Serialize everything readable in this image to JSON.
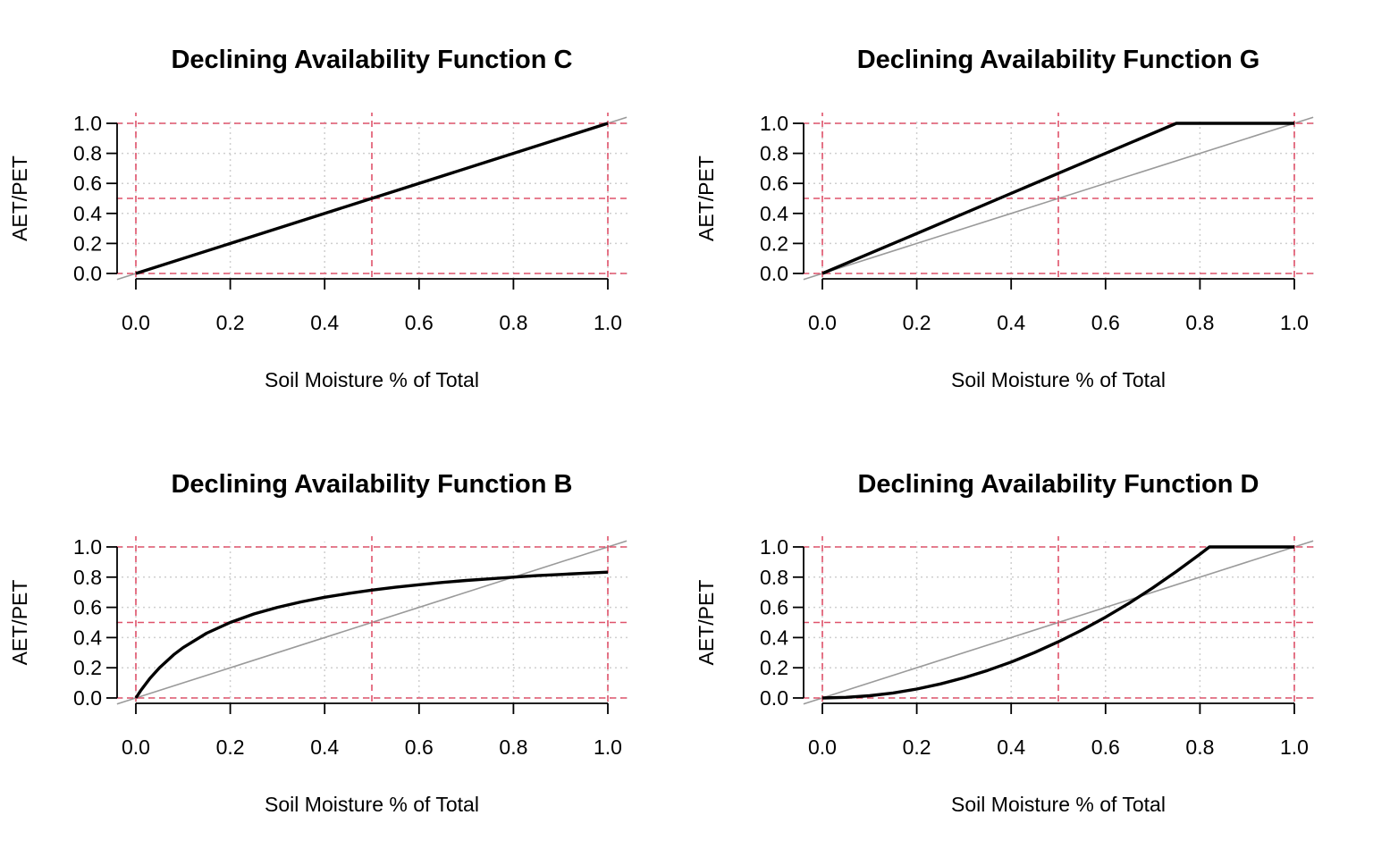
{
  "chart_data": [
    {
      "type": "line",
      "title": "Declining Availability Function C",
      "xlabel": "Soil Moisture % of Total",
      "ylabel": "AET/PET",
      "xlim": [
        0,
        1
      ],
      "ylim": [
        0,
        1
      ],
      "xticks": [
        "0.0",
        "0.2",
        "0.4",
        "0.6",
        "0.8",
        "1.0"
      ],
      "yticks": [
        "0.0",
        "0.2",
        "0.4",
        "0.6",
        "0.8",
        "1.0"
      ],
      "grid": true,
      "reference_lines": {
        "h": [
          0,
          0.5,
          1
        ],
        "v": [
          0,
          0.5,
          1
        ],
        "color": "#DF536B"
      },
      "identity_line": true,
      "series": [
        {
          "x": [
            0,
            0.25,
            0.5,
            0.75,
            1
          ],
          "y": [
            0,
            0.25,
            0.5,
            0.75,
            1
          ]
        }
      ]
    },
    {
      "type": "line",
      "title": "Declining Availability Function G",
      "xlabel": "Soil Moisture % of Total",
      "ylabel": "AET/PET",
      "xlim": [
        0,
        1
      ],
      "ylim": [
        0,
        1
      ],
      "xticks": [
        "0.0",
        "0.2",
        "0.4",
        "0.6",
        "0.8",
        "1.0"
      ],
      "yticks": [
        "0.0",
        "0.2",
        "0.4",
        "0.6",
        "0.8",
        "1.0"
      ],
      "grid": true,
      "reference_lines": {
        "h": [
          0,
          0.5,
          1
        ],
        "v": [
          0,
          0.5,
          1
        ],
        "color": "#DF536B"
      },
      "identity_line": true,
      "series": [
        {
          "x": [
            0,
            0.25,
            0.5,
            0.75,
            1
          ],
          "y": [
            0,
            0.333,
            0.667,
            1,
            1
          ]
        }
      ]
    },
    {
      "type": "line",
      "title": "Declining Availability Function B",
      "xlabel": "Soil Moisture % of Total",
      "ylabel": "AET/PET",
      "xlim": [
        0,
        1
      ],
      "ylim": [
        0,
        1
      ],
      "xticks": [
        "0.0",
        "0.2",
        "0.4",
        "0.6",
        "0.8",
        "1.0"
      ],
      "yticks": [
        "0.0",
        "0.2",
        "0.4",
        "0.6",
        "0.8",
        "1.0"
      ],
      "grid": true,
      "reference_lines": {
        "h": [
          0,
          0.5,
          1
        ],
        "v": [
          0,
          0.5,
          1
        ],
        "color": "#DF536B"
      },
      "identity_line": true,
      "series": [
        {
          "x": [
            0,
            0.01,
            0.03,
            0.05,
            0.08,
            0.1,
            0.15,
            0.2,
            0.25,
            0.3,
            0.35,
            0.4,
            0.45,
            0.5,
            0.55,
            0.6,
            0.65,
            0.7,
            0.75,
            0.8,
            0.85,
            0.9,
            0.95,
            1
          ],
          "y": [
            0,
            0.048,
            0.13,
            0.2,
            0.286,
            0.333,
            0.429,
            0.5,
            0.556,
            0.6,
            0.636,
            0.667,
            0.692,
            0.714,
            0.733,
            0.75,
            0.765,
            0.778,
            0.789,
            0.8,
            0.81,
            0.818,
            0.826,
            0.833
          ]
        }
      ]
    },
    {
      "type": "line",
      "title": "Declining Availability Function D",
      "xlabel": "Soil Moisture % of Total",
      "ylabel": "AET/PET",
      "xlim": [
        0,
        1
      ],
      "ylim": [
        0,
        1
      ],
      "xticks": [
        "0.0",
        "0.2",
        "0.4",
        "0.6",
        "0.8",
        "1.0"
      ],
      "yticks": [
        "0.0",
        "0.2",
        "0.4",
        "0.6",
        "0.8",
        "1.0"
      ],
      "grid": true,
      "reference_lines": {
        "h": [
          0,
          0.5,
          1
        ],
        "v": [
          0,
          0.5,
          1
        ],
        "color": "#DF536B"
      },
      "identity_line": true,
      "series": [
        {
          "x": [
            0,
            0.05,
            0.1,
            0.15,
            0.2,
            0.25,
            0.3,
            0.35,
            0.4,
            0.45,
            0.5,
            0.55,
            0.6,
            0.65,
            0.7,
            0.75,
            0.8,
            0.82,
            0.9,
            1
          ],
          "y": [
            0,
            0.004,
            0.015,
            0.033,
            0.059,
            0.093,
            0.134,
            0.182,
            0.238,
            0.301,
            0.372,
            0.45,
            0.535,
            0.628,
            0.729,
            0.837,
            0.952,
            1,
            1,
            1
          ]
        }
      ]
    }
  ]
}
